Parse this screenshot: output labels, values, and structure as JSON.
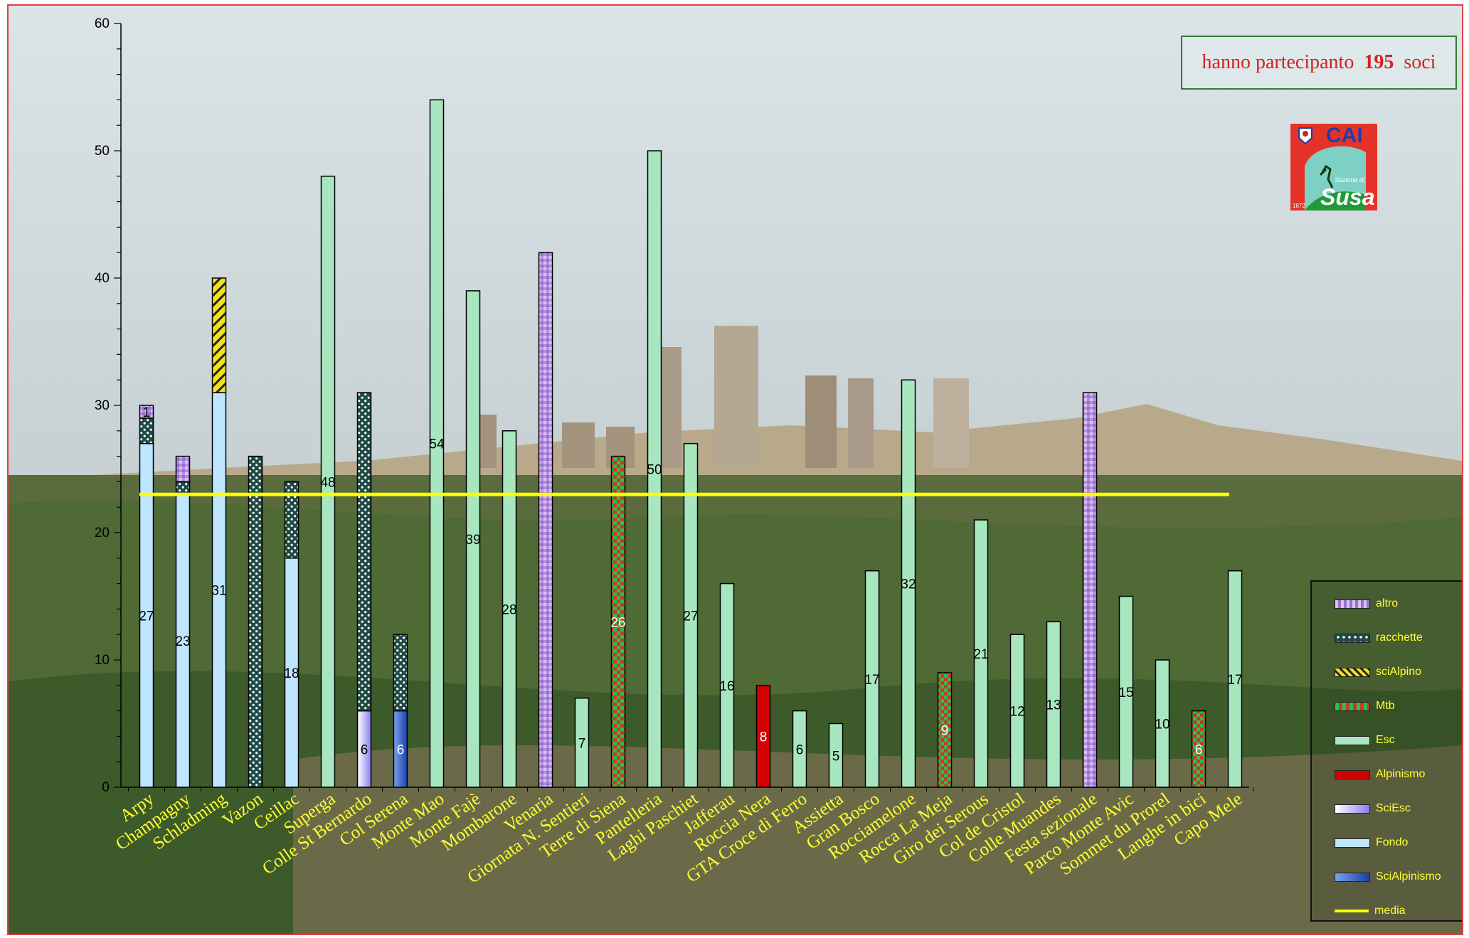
{
  "info": {
    "prefix": "hanno partecipanto",
    "count": "195",
    "suffix": "soci"
  },
  "logo": {
    "text": "CAI",
    "sub": "Sezione di",
    "name": "Susa",
    "year": "1872"
  },
  "colors": {
    "altro": "#b48ee0",
    "racchette": "#1f4a46",
    "sciAlpino": "#f0e020",
    "Mtb": "#22c44a",
    "Esc": "#a8e6c0",
    "Alpinismo": "#d40000",
    "SciEsc": "#d8d8ff",
    "Fondo": "#bfe6ff",
    "SciAlpinismo": "#3a6fd8",
    "media": "#ffff00"
  },
  "chart_data": {
    "type": "bar",
    "stacked": true,
    "ylim": [
      0,
      60
    ],
    "yticks": [
      "0",
      "10",
      "20",
      "30",
      "40",
      "50",
      "60"
    ],
    "media": 23,
    "categories": [
      "Arpy",
      "Champagny",
      "Schladming",
      "Vazon",
      "Ceillac",
      "Superga",
      "Colle St Bernardo",
      "Col Serena",
      "Monte Mao",
      "Monte Fajè",
      "Mombarone",
      "Venaria",
      "Giornata N. Sentieri",
      "Terre di Siena",
      "Pantelleria",
      "Laghi Paschiet",
      "Jafferau",
      "Roccia Nera",
      "GTA Croce di Ferro",
      "Assietta",
      "Gran Bosco",
      "Rocciamelone",
      "Rocca La Meja",
      "Giro dei Serous",
      "Col de Cristol",
      "Colle Muandes",
      "Festa sezionale",
      "Parco Monte Avic",
      "Sommet du Prorel",
      "Langhe in bici",
      "Capo Mele"
    ],
    "bars": [
      [
        {
          "s": "Fondo",
          "v": 27,
          "label": "27"
        },
        {
          "s": "racchette",
          "v": 2
        },
        {
          "s": "altro",
          "v": 1,
          "label": "1"
        }
      ],
      [
        {
          "s": "Fondo",
          "v": 23,
          "label": "23"
        },
        {
          "s": "racchette",
          "v": 1
        },
        {
          "s": "altro",
          "v": 2
        }
      ],
      [
        {
          "s": "Fondo",
          "v": 31,
          "label": "31"
        },
        {
          "s": "sciAlpino",
          "v": 9
        }
      ],
      [
        {
          "s": "racchette",
          "v": 26
        }
      ],
      [
        {
          "s": "Fondo",
          "v": 18,
          "label": "18"
        },
        {
          "s": "racchette",
          "v": 6
        }
      ],
      [
        {
          "s": "Esc",
          "v": 48,
          "label": "48"
        }
      ],
      [
        {
          "s": "SciEsc",
          "v": 6,
          "label": "6"
        },
        {
          "s": "racchette",
          "v": 25
        }
      ],
      [
        {
          "s": "SciAlpinismo",
          "v": 6,
          "label": "6"
        },
        {
          "s": "racchette",
          "v": 6
        }
      ],
      [
        {
          "s": "Esc",
          "v": 54,
          "label": "54"
        }
      ],
      [
        {
          "s": "Esc",
          "v": 39,
          "label": "39"
        }
      ],
      [
        {
          "s": "Esc",
          "v": 28,
          "label": "28"
        }
      ],
      [
        {
          "s": "altro",
          "v": 42
        }
      ],
      [
        {
          "s": "Esc",
          "v": 7,
          "label": "7"
        }
      ],
      [
        {
          "s": "Mtb",
          "v": 26,
          "label": "26"
        }
      ],
      [
        {
          "s": "Esc",
          "v": 50,
          "label": "50"
        }
      ],
      [
        {
          "s": "Esc",
          "v": 27,
          "label": "27"
        }
      ],
      [
        {
          "s": "Esc",
          "v": 16,
          "label": "16"
        }
      ],
      [
        {
          "s": "Alpinismo",
          "v": 8,
          "label": "8"
        }
      ],
      [
        {
          "s": "Esc",
          "v": 6,
          "label": "6"
        }
      ],
      [
        {
          "s": "Esc",
          "v": 5,
          "label": "5"
        }
      ],
      [
        {
          "s": "Esc",
          "v": 17,
          "label": "17"
        }
      ],
      [
        {
          "s": "Esc",
          "v": 32,
          "label": "32"
        }
      ],
      [
        {
          "s": "Mtb",
          "v": 9,
          "label": "9"
        }
      ],
      [
        {
          "s": "Esc",
          "v": 21,
          "label": "21"
        }
      ],
      [
        {
          "s": "Esc",
          "v": 12,
          "label": "12"
        }
      ],
      [
        {
          "s": "Esc",
          "v": 13,
          "label": "13"
        }
      ],
      [
        {
          "s": "altro",
          "v": 31
        }
      ],
      [
        {
          "s": "Esc",
          "v": 15,
          "label": "15"
        }
      ],
      [
        {
          "s": "Esc",
          "v": 10,
          "label": "10"
        }
      ],
      [
        {
          "s": "Mtb",
          "v": 6,
          "label": "6"
        }
      ],
      [
        {
          "s": "Esc",
          "v": 17,
          "label": "17"
        }
      ]
    ],
    "legend": [
      "altro",
      "racchette",
      "sciAlpino",
      "Mtb",
      "Esc",
      "Alpinismo",
      "SciEsc",
      "Fondo",
      "SciAlpinismo",
      "media"
    ],
    "legend_position": "bottom-right"
  }
}
